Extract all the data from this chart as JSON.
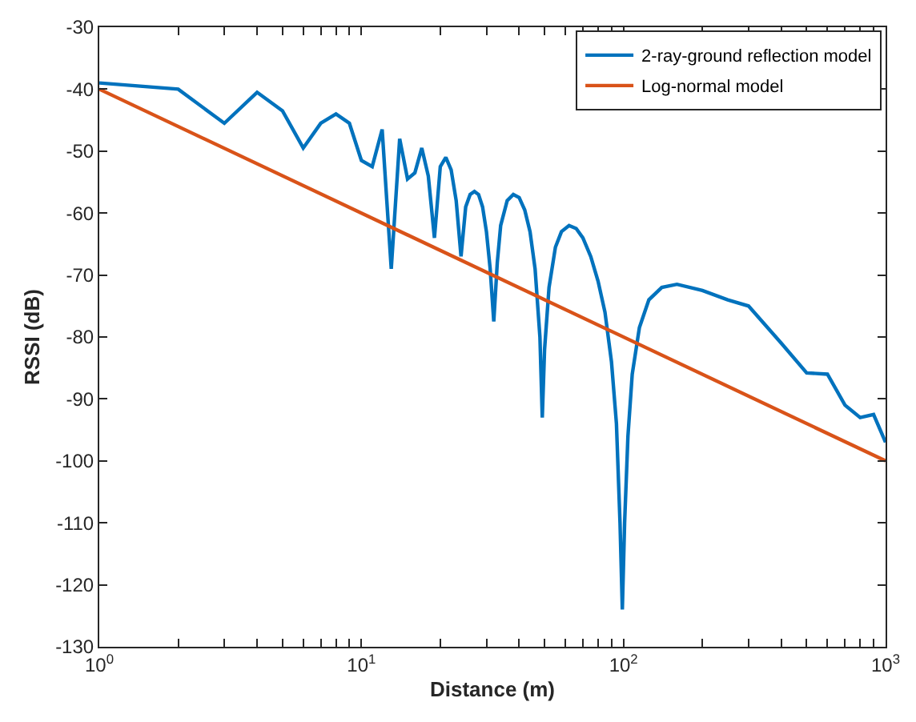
{
  "chart_data": {
    "type": "line",
    "xlabel": "Distance (m)",
    "ylabel": "RSSI (dB)",
    "log": "x",
    "xlim": [
      1,
      1000
    ],
    "ylim": [
      -130,
      -30
    ],
    "xticks": [
      {
        "value": 1,
        "label": "10$^{0}$"
      },
      {
        "value": 2,
        "label": null
      },
      {
        "value": 3,
        "label": null
      },
      {
        "value": 4,
        "label": null
      },
      {
        "value": 5,
        "label": null
      },
      {
        "value": 6,
        "label": null
      },
      {
        "value": 7,
        "label": null
      },
      {
        "value": 8,
        "label": null
      },
      {
        "value": 9,
        "label": null
      },
      {
        "value": 10,
        "label": "10$^{1}$"
      },
      {
        "value": 20,
        "label": null
      },
      {
        "value": 30,
        "label": null
      },
      {
        "value": 40,
        "label": null
      },
      {
        "value": 50,
        "label": null
      },
      {
        "value": 60,
        "label": null
      },
      {
        "value": 70,
        "label": null
      },
      {
        "value": 80,
        "label": null
      },
      {
        "value": 90,
        "label": null
      },
      {
        "value": 100,
        "label": "10$^{2}$"
      },
      {
        "value": 200,
        "label": null
      },
      {
        "value": 300,
        "label": null
      },
      {
        "value": 400,
        "label": null
      },
      {
        "value": 500,
        "label": null
      },
      {
        "value": 600,
        "label": null
      },
      {
        "value": 700,
        "label": null
      },
      {
        "value": 800,
        "label": null
      },
      {
        "value": 900,
        "label": null
      },
      {
        "value": 1000,
        "label": "10$^{3}$"
      }
    ],
    "yticks": [
      -130,
      -120,
      -110,
      -100,
      -90,
      -80,
      -70,
      -60,
      -50,
      -40,
      -30
    ],
    "legend": "top right",
    "marker": "none",
    "line_style": "solid",
    "series": [
      {
        "name": "2-ray-ground reflection model",
        "color": "#0072bd",
        "x": [
          1,
          2,
          3,
          4,
          5,
          6,
          7,
          8,
          9,
          10,
          11,
          12,
          13,
          14,
          15,
          16,
          17,
          18,
          19,
          20,
          21,
          22,
          23,
          24,
          25,
          26,
          27,
          28,
          29,
          30,
          31,
          32,
          33,
          34,
          36,
          38,
          40,
          42,
          44,
          46,
          48,
          49,
          50,
          52,
          55,
          58,
          62,
          66,
          70,
          75,
          80,
          85,
          90,
          94,
          97,
          99,
          101,
          104,
          108,
          115,
          125,
          140,
          160,
          200,
          250,
          300,
          400,
          500,
          600,
          700,
          800,
          900,
          1000
        ],
        "values": [
          -39,
          -40,
          -45.5,
          -40.5,
          -43.5,
          -49.5,
          -45.5,
          -44,
          -45.5,
          -51.5,
          -52.5,
          -46.5,
          -69,
          -48,
          -54.5,
          -53.5,
          -49.5,
          -54,
          -64,
          -52.5,
          -51,
          -53,
          -58,
          -67,
          -59,
          -57,
          -56.5,
          -57,
          -59,
          -63,
          -69,
          -77.5,
          -68,
          -62,
          -58,
          -57,
          -57.5,
          -59.5,
          -63,
          -69,
          -80,
          -93,
          -82,
          -72,
          -65.5,
          -63,
          -62,
          -62.5,
          -64,
          -67,
          -71,
          -76,
          -84,
          -94,
          -110,
          -124,
          -110,
          -96,
          -86,
          -78.5,
          -74,
          -72,
          -71.5,
          -72.5,
          -74,
          -75,
          -81,
          -85.8,
          -86,
          -91,
          -93,
          -92.5,
          -97
        ]
      },
      {
        "name": "Log-normal model",
        "color": "#d95319",
        "x": [
          1,
          1000
        ],
        "values": [
          -40,
          -100
        ]
      }
    ]
  }
}
